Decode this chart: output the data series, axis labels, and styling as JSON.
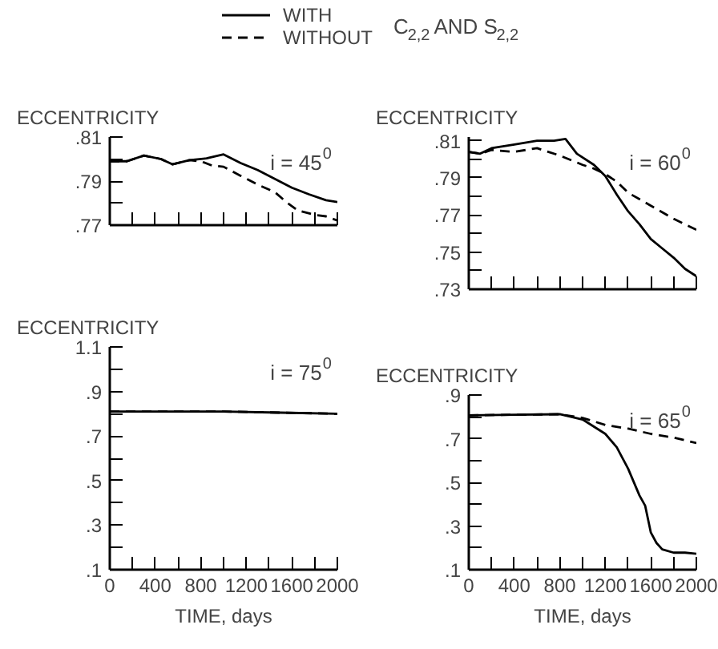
{
  "chart_data": [
    {
      "type": "line",
      "legend": "top",
      "legend_title": "C$_{2,2}$ AND S$_{2,2}$",
      "ylabel": "ECCENTRICITY",
      "annotations": [
        "i = 45$^{0}$"
      ],
      "grid": false,
      "marker": "none",
      "tick_labels": "y",
      "xlim": [
        0,
        2000
      ],
      "xticks": [
        {
          "value": 0,
          "label": null
        },
        {
          "value": 200,
          "label": null
        },
        {
          "value": 400,
          "label": null
        },
        {
          "value": 600,
          "label": null
        },
        {
          "value": 800,
          "label": null
        },
        {
          "value": 1000,
          "label": null
        },
        {
          "value": 1200,
          "label": null
        },
        {
          "value": 1400,
          "label": null
        },
        {
          "value": 1600,
          "label": null
        },
        {
          "value": 1800,
          "label": null
        },
        {
          "value": 2000,
          "label": null
        }
      ],
      "ylim": [
        0.77,
        0.81
      ],
      "yticks": [
        {
          "value": 0.77,
          "label": ".77"
        },
        {
          "value": 0.78,
          "label": null
        },
        {
          "value": 0.79,
          "label": ".79"
        },
        {
          "value": 0.8,
          "label": null
        },
        {
          "value": 0.81,
          "label": ".81"
        }
      ],
      "series": [
        {
          "name": "WITH",
          "color": "#000000",
          "line_style": "solid",
          "x": [
            0,
            150,
            300,
            450,
            550,
            700,
            850,
            1000,
            1150,
            1300,
            1450,
            1600,
            1750,
            1900,
            2000
          ],
          "values": [
            0.799,
            0.799,
            0.8016,
            0.8,
            0.7976,
            0.7995,
            0.8003,
            0.8021,
            0.7982,
            0.795,
            0.791,
            0.787,
            0.784,
            0.7813,
            0.7805
          ]
        },
        {
          "name": "WITHOUT",
          "color": "#000000",
          "line_style": "dashed",
          "x": [
            0,
            150,
            300,
            450,
            550,
            700,
            800,
            900,
            1000,
            1150,
            1300,
            1450,
            1550,
            1650,
            1800,
            1900,
            2000
          ],
          "values": [
            0.799,
            0.799,
            0.8016,
            0.8,
            0.7976,
            0.7995,
            0.799,
            0.797,
            0.7965,
            0.7924,
            0.7884,
            0.785,
            0.7805,
            0.7767,
            0.7747,
            0.774,
            0.7721
          ]
        }
      ]
    },
    {
      "type": "line",
      "ylabel": "ECCENTRICITY",
      "annotations": [
        "i = 60$^{0}$"
      ],
      "grid": false,
      "marker": "none",
      "tick_labels": "y",
      "xlim": [
        0,
        2000
      ],
      "xticks": [
        {
          "value": 0,
          "label": null
        },
        {
          "value": 200,
          "label": null
        },
        {
          "value": 400,
          "label": null
        },
        {
          "value": 600,
          "label": null
        },
        {
          "value": 800,
          "label": null
        },
        {
          "value": 1000,
          "label": null
        },
        {
          "value": 1200,
          "label": null
        },
        {
          "value": 1400,
          "label": null
        },
        {
          "value": 1600,
          "label": null
        },
        {
          "value": 1800,
          "label": null
        },
        {
          "value": 2000,
          "label": null
        }
      ],
      "ylim": [
        0.73,
        0.812
      ],
      "yticks": [
        {
          "value": 0.73,
          "label": ".73"
        },
        {
          "value": 0.74,
          "label": null
        },
        {
          "value": 0.75,
          "label": ".75"
        },
        {
          "value": 0.76,
          "label": null
        },
        {
          "value": 0.77,
          "label": ".77"
        },
        {
          "value": 0.78,
          "label": null
        },
        {
          "value": 0.79,
          "label": ".79"
        },
        {
          "value": 0.8,
          "label": null
        },
        {
          "value": 0.81,
          "label": ".81"
        }
      ],
      "series": [
        {
          "color": "#000000",
          "line_style": "solid",
          "x": [
            0,
            100,
            200,
            400,
            600,
            750,
            850,
            950,
            1100,
            1200,
            1300,
            1400,
            1500,
            1600,
            1700,
            1800,
            1900,
            2000
          ],
          "values": [
            0.804,
            0.803,
            0.806,
            0.808,
            0.81,
            0.81,
            0.811,
            0.803,
            0.797,
            0.791,
            0.781,
            0.772,
            0.765,
            0.757,
            0.752,
            0.747,
            0.741,
            0.737
          ]
        },
        {
          "color": "#000000",
          "line_style": "dashed",
          "x": [
            0,
            100,
            200,
            400,
            600,
            800,
            1000,
            1100,
            1200,
            1300,
            1400,
            1600,
            1800,
            2000
          ],
          "values": [
            0.804,
            0.803,
            0.805,
            0.804,
            0.806,
            0.802,
            0.797,
            0.795,
            0.792,
            0.788,
            0.782,
            0.775,
            0.768,
            0.762
          ]
        }
      ]
    },
    {
      "type": "line",
      "ylabel": "ECCENTRICITY",
      "xlabel": "TIME, days",
      "annotations": [
        "i = 75$^{0}$"
      ],
      "grid": false,
      "marker": "none",
      "xlim": [
        0,
        2000
      ],
      "xticks": [
        0,
        {
          "value": 200,
          "label": null
        },
        400,
        {
          "value": 600,
          "label": null
        },
        800,
        {
          "value": 1000,
          "label": null
        },
        1200,
        {
          "value": 1400,
          "label": null
        },
        1600,
        {
          "value": 1800,
          "label": null
        },
        2000
      ],
      "ylim": [
        0.1,
        1.1
      ],
      "yticks": [
        {
          "value": 0.1,
          "label": ".1"
        },
        {
          "value": 0.2,
          "label": null
        },
        {
          "value": 0.3,
          "label": ".3"
        },
        {
          "value": 0.4,
          "label": null
        },
        {
          "value": 0.5,
          "label": ".5"
        },
        {
          "value": 0.6,
          "label": null
        },
        {
          "value": 0.7,
          "label": ".7"
        },
        {
          "value": 0.8,
          "label": null
        },
        {
          "value": 0.9,
          "label": ".9"
        },
        {
          "value": 1.0,
          "label": null
        },
        {
          "value": 1.1,
          "label": "1.1"
        }
      ],
      "series": [
        {
          "color": "#000000",
          "line_style": "solid",
          "x": [
            0,
            1000,
            1500,
            2000
          ],
          "values": [
            0.81,
            0.81,
            0.805,
            0.8
          ]
        },
        {
          "color": "#000000",
          "line_style": "dashed",
          "x": [
            0,
            1000,
            2000
          ],
          "values": [
            0.81,
            0.81,
            0.8
          ]
        }
      ]
    },
    {
      "type": "line",
      "ylabel": "ECCENTRICITY",
      "xlabel": "TIME, days",
      "annotations": [
        "i = 65$^{0}$"
      ],
      "grid": false,
      "marker": "none",
      "xlim": [
        0,
        2000
      ],
      "xticks": [
        0,
        {
          "value": 200,
          "label": null
        },
        400,
        {
          "value": 600,
          "label": null
        },
        800,
        {
          "value": 1000,
          "label": null
        },
        1200,
        {
          "value": 1400,
          "label": null
        },
        1600,
        {
          "value": 1800,
          "label": null
        },
        2000
      ],
      "ylim": [
        0.1,
        0.9
      ],
      "yticks": [
        {
          "value": 0.1,
          "label": ".1"
        },
        {
          "value": 0.2,
          "label": null
        },
        {
          "value": 0.3,
          "label": ".3"
        },
        {
          "value": 0.4,
          "label": null
        },
        {
          "value": 0.5,
          "label": ".5"
        },
        {
          "value": 0.6,
          "label": null
        },
        {
          "value": 0.7,
          "label": ".7"
        },
        {
          "value": 0.8,
          "label": null
        },
        {
          "value": 0.9,
          "label": ".9"
        }
      ],
      "series": [
        {
          "color": "#000000",
          "line_style": "solid",
          "x": [
            0,
            400,
            800,
            1000,
            1200,
            1300,
            1400,
            1500,
            1550,
            1600,
            1650,
            1700,
            1800,
            1900,
            2000
          ],
          "values": [
            0.807,
            0.81,
            0.812,
            0.788,
            0.722,
            0.661,
            0.563,
            0.44,
            0.393,
            0.27,
            0.222,
            0.193,
            0.178,
            0.178,
            0.173
          ]
        },
        {
          "color": "#000000",
          "line_style": "dashed",
          "x": [
            0,
            800,
            1000,
            1200,
            1400,
            1600,
            1800,
            2000
          ],
          "values": [
            0.807,
            0.812,
            0.795,
            0.763,
            0.746,
            0.722,
            0.705,
            0.68
          ]
        }
      ]
    }
  ]
}
